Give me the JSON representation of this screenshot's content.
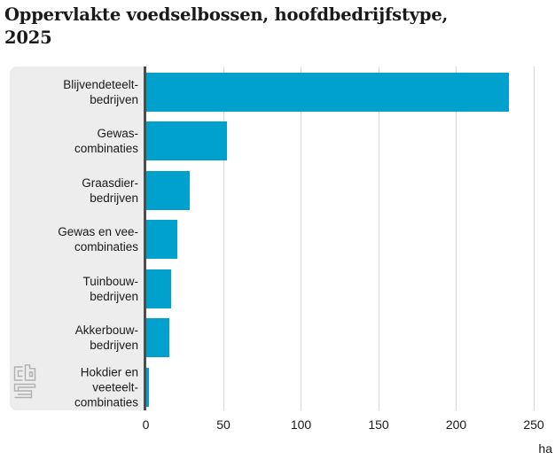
{
  "title": {
    "line1": "Oppervlakte voedselbossen, hoofdbedrijfstype,",
    "line2": "2025"
  },
  "chart_data": {
    "type": "bar",
    "orientation": "horizontal",
    "title": "Oppervlakte voedselbossen, hoofdbedrijfstype, 2025",
    "categories": [
      "Blijvendeteeltbedrijven",
      "Gewascombinaties",
      "Graasdierbedrijven",
      "Gewas en vee-combinaties",
      "Tuinbouwbedrijven",
      "Akkerbouwbedrijven",
      "Hokdier en veeteeltcombinaties"
    ],
    "category_label_lines": [
      [
        "Blijvendeteelt-",
        "bedrijven"
      ],
      [
        "Gewas-",
        "combinaties"
      ],
      [
        "Graasdier-",
        "bedrijven"
      ],
      [
        "Gewas en vee-",
        "combinaties"
      ],
      [
        "Tuinbouw-",
        "bedrijven"
      ],
      [
        "Akkerbouw-",
        "bedrijven"
      ],
      [
        "Hokdier en",
        "veeteelt-",
        "combinaties"
      ]
    ],
    "values": [
      234,
      52,
      28,
      20,
      16,
      15,
      2
    ],
    "xlabel": "ha",
    "unit": "ha",
    "xlim": [
      0,
      264
    ],
    "xticks": [
      0,
      50,
      100,
      150,
      200,
      250
    ],
    "grid": true,
    "legend": false,
    "bar_color": "#00a1cd"
  },
  "branding": {
    "logo": "cbs-logo"
  },
  "colors": {
    "bar": "#00a1cd",
    "label_panel": "#ededed",
    "axis_line": "#4d4d4d",
    "gridline": "#d9d9d9",
    "text": "#1a1a1a",
    "logo": "#b0b0b0"
  }
}
